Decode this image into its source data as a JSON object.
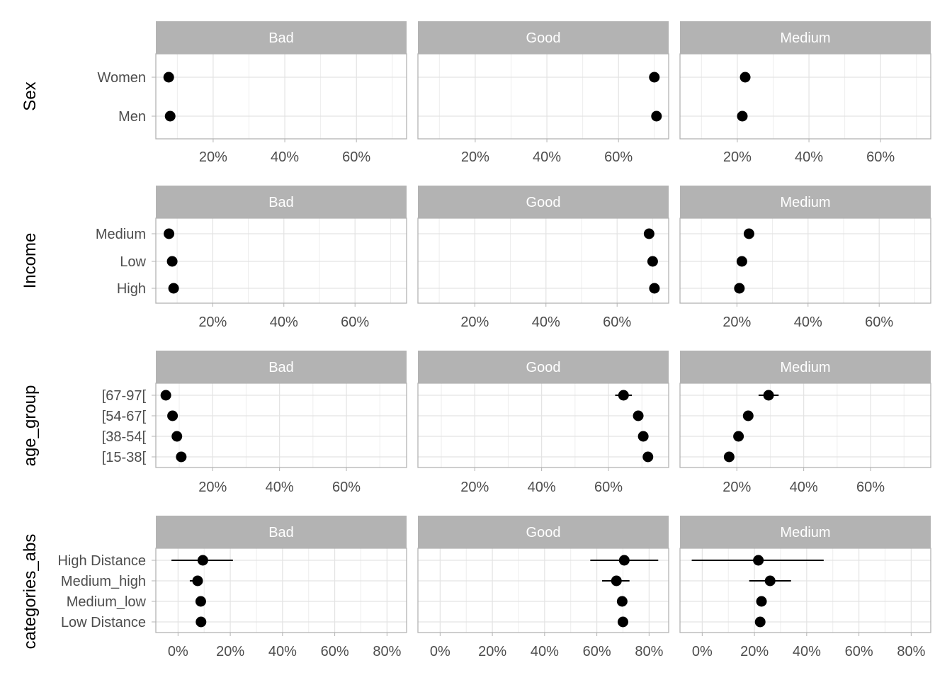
{
  "chart_data": {
    "type": "scatter",
    "description": "Faceted dot plot with error bars (estimated proportions with CIs)",
    "columns": [
      "Bad",
      "Good",
      "Medium"
    ],
    "colors": {
      "strip": "#b3b3b3",
      "strip_text": "#ffffff",
      "point": "#000000",
      "grid": "#e3e3e3",
      "border": "#b3b3b3"
    },
    "rows": [
      {
        "label": "Sex",
        "categories": [
          "Women",
          "Men"
        ],
        "x_ticks": [
          "20%",
          "40%",
          "60%"
        ],
        "panels": [
          {
            "facet": "Bad",
            "xlim": [
              0.04,
              0.74
            ],
            "tick_values": [
              0.2,
              0.4,
              0.6
            ],
            "points": [
              {
                "category": "Women",
                "value": 0.076
              },
              {
                "category": "Men",
                "value": 0.08
              }
            ]
          },
          {
            "facet": "Good",
            "xlim": [
              0.04,
              0.74
            ],
            "tick_values": [
              0.2,
              0.4,
              0.6
            ],
            "points": [
              {
                "category": "Women",
                "value": 0.7
              },
              {
                "category": "Men",
                "value": 0.706
              }
            ]
          },
          {
            "facet": "Medium",
            "xlim": [
              0.04,
              0.74
            ],
            "tick_values": [
              0.2,
              0.4,
              0.6
            ],
            "points": [
              {
                "category": "Women",
                "value": 0.222
              },
              {
                "category": "Men",
                "value": 0.214
              }
            ]
          }
        ]
      },
      {
        "label": "Income",
        "categories": [
          "Medium",
          "Low",
          "High"
        ],
        "x_ticks": [
          "20%",
          "40%",
          "60%"
        ],
        "panels": [
          {
            "facet": "Bad",
            "xlim": [
              0.04,
              0.745
            ],
            "tick_values": [
              0.2,
              0.4,
              0.6
            ],
            "points": [
              {
                "category": "Medium",
                "value": 0.077
              },
              {
                "category": "Low",
                "value": 0.086
              },
              {
                "category": "High",
                "value": 0.09
              }
            ]
          },
          {
            "facet": "Good",
            "xlim": [
              0.04,
              0.745
            ],
            "tick_values": [
              0.2,
              0.4,
              0.6
            ],
            "points": [
              {
                "category": "Medium",
                "value": 0.69
              },
              {
                "category": "Low",
                "value": 0.7
              },
              {
                "category": "High",
                "value": 0.705
              }
            ]
          },
          {
            "facet": "Medium",
            "xlim": [
              0.04,
              0.745
            ],
            "tick_values": [
              0.2,
              0.4,
              0.6
            ],
            "points": [
              {
                "category": "Medium",
                "value": 0.234
              },
              {
                "category": "Low",
                "value": 0.214
              },
              {
                "category": "High",
                "value": 0.207
              }
            ]
          }
        ]
      },
      {
        "label": "age_group",
        "categories": [
          "[67-97[",
          "[54-67[",
          "[38-54[",
          "[15-38["
        ],
        "x_ticks": [
          "20%",
          "40%",
          "60%"
        ],
        "panels": [
          {
            "facet": "Bad",
            "xlim": [
              0.03,
              0.78
            ],
            "tick_values": [
              0.2,
              0.4,
              0.6
            ],
            "points": [
              {
                "category": "[67-97[",
                "value": 0.06
              },
              {
                "category": "[54-67[",
                "value": 0.08
              },
              {
                "category": "[38-54[",
                "value": 0.093
              },
              {
                "category": "[15-38[",
                "value": 0.106
              }
            ]
          },
          {
            "facet": "Good",
            "xlim": [
              0.03,
              0.78
            ],
            "tick_values": [
              0.2,
              0.4,
              0.6
            ],
            "points": [
              {
                "category": "[67-97[",
                "value": 0.645,
                "lo": 0.62,
                "hi": 0.67
              },
              {
                "category": "[54-67[",
                "value": 0.689
              },
              {
                "category": "[38-54[",
                "value": 0.704
              },
              {
                "category": "[15-38[",
                "value": 0.718
              }
            ]
          },
          {
            "facet": "Medium",
            "xlim": [
              0.03,
              0.78
            ],
            "tick_values": [
              0.2,
              0.4,
              0.6
            ],
            "points": [
              {
                "category": "[67-97[",
                "value": 0.295,
                "lo": 0.265,
                "hi": 0.325
              },
              {
                "category": "[54-67[",
                "value": 0.234
              },
              {
                "category": "[38-54[",
                "value": 0.205
              },
              {
                "category": "[15-38[",
                "value": 0.177
              }
            ]
          }
        ]
      },
      {
        "label": "categories_abs",
        "categories": [
          "High Distance",
          "Medium_high",
          "Medium_low",
          "Low Distance"
        ],
        "x_ticks": [
          "0%",
          "20%",
          "40%",
          "60%",
          "80%"
        ],
        "panels": [
          {
            "facet": "Bad",
            "xlim": [
              -0.085,
              0.875
            ],
            "tick_values": [
              0,
              0.2,
              0.4,
              0.6,
              0.8
            ],
            "points": [
              {
                "category": "High Distance",
                "value": 0.095,
                "lo": -0.025,
                "hi": 0.21
              },
              {
                "category": "Medium_high",
                "value": 0.075,
                "lo": 0.045,
                "hi": 0.09
              },
              {
                "category": "Medium_low",
                "value": 0.087
              },
              {
                "category": "Low Distance",
                "value": 0.088
              }
            ]
          },
          {
            "facet": "Good",
            "xlim": [
              -0.085,
              0.875
            ],
            "tick_values": [
              0,
              0.2,
              0.4,
              0.6,
              0.8
            ],
            "points": [
              {
                "category": "High Distance",
                "value": 0.705,
                "lo": 0.575,
                "hi": 0.835
              },
              {
                "category": "Medium_high",
                "value": 0.675,
                "lo": 0.62,
                "hi": 0.725
              },
              {
                "category": "Medium_low",
                "value": 0.697
              },
              {
                "category": "Low Distance",
                "value": 0.7
              }
            ]
          },
          {
            "facet": "Medium",
            "xlim": [
              -0.085,
              0.875
            ],
            "tick_values": [
              0,
              0.2,
              0.4,
              0.6,
              0.8
            ],
            "points": [
              {
                "category": "High Distance",
                "value": 0.215,
                "lo": -0.04,
                "hi": 0.465
              },
              {
                "category": "Medium_high",
                "value": 0.26,
                "lo": 0.18,
                "hi": 0.34
              },
              {
                "category": "Medium_low",
                "value": 0.227
              },
              {
                "category": "Low Distance",
                "value": 0.222
              }
            ]
          }
        ]
      }
    ]
  }
}
